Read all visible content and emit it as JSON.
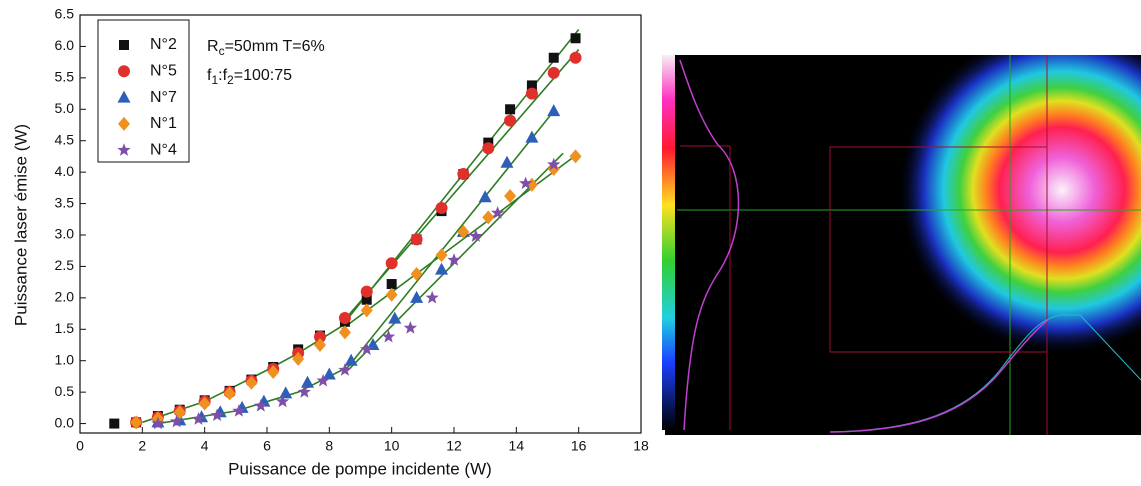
{
  "chart_data": {
    "type": "scatter",
    "x_label": "Puissance de pompe incidente (W)",
    "y_label": "Puissance laser émise (W)",
    "annotations": [
      [
        "R",
        "c",
        "=50mm T=6%"
      ],
      [
        "f",
        "1",
        ":f",
        "2",
        "=100:75"
      ]
    ],
    "xlim": [
      0,
      18
    ],
    "ylim": [
      -0.15,
      6.5
    ],
    "xticks": [
      0,
      2,
      4,
      6,
      8,
      10,
      12,
      14,
      16,
      18
    ],
    "yticks": [
      {
        "value": 0,
        "label": "0.0"
      },
      0.5,
      {
        "value": 1,
        "label": "1.0"
      },
      1.5,
      {
        "value": 2,
        "label": "2.0"
      },
      2.5,
      {
        "value": 3,
        "label": "3.0"
      },
      3.5,
      {
        "value": 4,
        "label": "4.0"
      },
      4.5,
      {
        "value": 5,
        "label": "5.0"
      },
      5.5,
      {
        "value": 6,
        "label": "6.0"
      },
      6.5
    ],
    "fit_color": "#2f7d22",
    "fit_lines": [
      {
        "x": [
          2.0,
          4.0,
          6.0,
          7.0,
          8.4
        ],
        "y": [
          0.02,
          0.35,
          0.85,
          1.12,
          1.55
        ]
      },
      {
        "x": [
          8.4,
          16.0
        ],
        "y": [
          1.55,
          6.27
        ]
      },
      {
        "x": [
          8.4,
          16.0
        ],
        "y": [
          1.6,
          5.95
        ]
      },
      {
        "x": [
          8.4,
          16.0
        ],
        "y": [
          1.5,
          4.3
        ]
      },
      {
        "x": [
          2.5,
          5.0,
          7.0,
          8.6
        ],
        "y": [
          0.0,
          0.2,
          0.5,
          0.9
        ]
      },
      {
        "x": [
          8.6,
          15.2
        ],
        "y": [
          0.9,
          4.97
        ]
      },
      {
        "x": [
          8.6,
          15.5
        ],
        "y": [
          0.85,
          4.3
        ]
      }
    ],
    "series": [
      {
        "name": "N°2",
        "color": "#111111",
        "marker": "square",
        "x": [
          1.1,
          1.8,
          2.5,
          3.2,
          4.0,
          4.8,
          5.5,
          6.2,
          7.0,
          7.7,
          8.5,
          9.2,
          10.0,
          10.8,
          11.6,
          12.3,
          13.1,
          13.8,
          14.5,
          15.2,
          15.9
        ],
        "values": [
          0.0,
          0.02,
          0.12,
          0.22,
          0.37,
          0.52,
          0.7,
          0.9,
          1.18,
          1.4,
          1.62,
          1.97,
          2.22,
          2.93,
          3.38,
          3.97,
          4.47,
          5.0,
          5.38,
          5.82,
          6.13
        ]
      },
      {
        "name": "N°5",
        "color": "#e0302c",
        "marker": "circle",
        "x": [
          1.8,
          2.5,
          3.2,
          4.0,
          4.8,
          5.5,
          6.2,
          7.0,
          7.7,
          8.5,
          9.2,
          10.0,
          10.8,
          11.6,
          12.3,
          13.1,
          13.8,
          14.5,
          15.2,
          15.9
        ],
        "values": [
          0.02,
          0.1,
          0.2,
          0.35,
          0.5,
          0.68,
          0.87,
          1.12,
          1.38,
          1.68,
          2.1,
          2.55,
          2.93,
          3.43,
          3.97,
          4.38,
          4.82,
          5.25,
          5.58,
          5.82
        ]
      },
      {
        "name": "N°7",
        "color": "#2d5fb8",
        "marker": "triangle",
        "x": [
          2.5,
          3.2,
          3.9,
          4.5,
          5.2,
          5.9,
          6.6,
          7.3,
          8.0,
          8.7,
          9.4,
          10.1,
          10.8,
          11.6,
          12.3,
          13.0,
          13.7,
          14.5,
          15.2
        ],
        "values": [
          0.02,
          0.05,
          0.1,
          0.18,
          0.25,
          0.35,
          0.48,
          0.65,
          0.78,
          1.0,
          1.25,
          1.67,
          2.0,
          2.45,
          3.05,
          3.6,
          4.15,
          4.55,
          4.97
        ]
      },
      {
        "name": "N°1",
        "color": "#f0901e",
        "marker": "diamond",
        "x": [
          1.8,
          2.5,
          3.2,
          4.0,
          4.8,
          5.5,
          6.2,
          7.0,
          7.7,
          8.5,
          9.2,
          10.0,
          10.8,
          11.6,
          12.3,
          13.1,
          13.8,
          14.5,
          15.2,
          15.9
        ],
        "values": [
          0.02,
          0.08,
          0.18,
          0.32,
          0.48,
          0.65,
          0.82,
          1.03,
          1.25,
          1.45,
          1.8,
          2.05,
          2.38,
          2.68,
          3.05,
          3.28,
          3.62,
          3.8,
          4.05,
          4.25
        ]
      },
      {
        "name": "N°4",
        "color": "#7e4fa8",
        "marker": "star",
        "x": [
          2.5,
          3.1,
          3.8,
          4.4,
          5.1,
          5.8,
          6.5,
          7.2,
          7.8,
          8.5,
          9.2,
          9.9,
          10.6,
          11.3,
          12.0,
          12.7,
          13.4,
          14.3,
          15.2
        ],
        "values": [
          0.0,
          0.03,
          0.07,
          0.13,
          0.2,
          0.28,
          0.35,
          0.5,
          0.68,
          0.85,
          1.18,
          1.38,
          1.52,
          2.0,
          2.6,
          2.98,
          3.35,
          3.82,
          4.12
        ]
      }
    ]
  }
}
